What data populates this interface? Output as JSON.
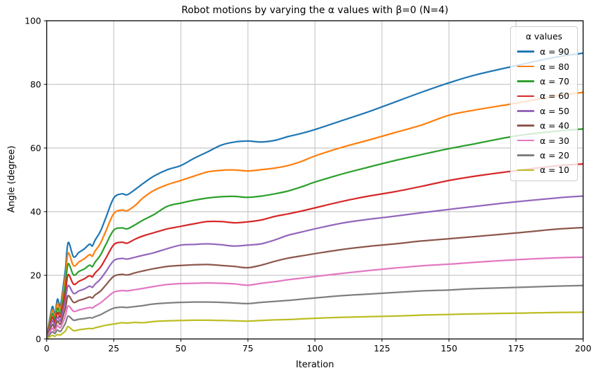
{
  "chart_data": {
    "type": "line",
    "title": "Robot motions by varying the α values with β=0 (N=4)",
    "xlabel": "Iteration",
    "ylabel": "Angle (degree)",
    "xlim": [
      0,
      200
    ],
    "ylim": [
      0,
      100
    ],
    "xticks": [
      0,
      25,
      50,
      75,
      100,
      125,
      150,
      175,
      200
    ],
    "yticks": [
      0,
      20,
      40,
      60,
      80,
      100
    ],
    "grid": true,
    "grid_color": "#b8b8b8",
    "spine_color": "#000000",
    "legend_title": "α values",
    "legend_position": "upper right",
    "x": [
      0,
      2,
      3,
      4,
      5,
      6,
      7,
      8,
      10,
      12,
      14,
      16,
      17,
      18,
      20,
      22,
      25,
      28,
      30,
      33,
      36,
      40,
      45,
      50,
      55,
      60,
      65,
      70,
      75,
      80,
      85,
      90,
      95,
      100,
      110,
      120,
      130,
      140,
      150,
      160,
      175,
      190,
      200
    ],
    "series": [
      {
        "name": "alpha-90",
        "label": "α = 90",
        "color": "#1f77b4",
        "values": [
          0.5,
          10,
          7.6,
          12.5,
          10.3,
          15.5,
          22,
          30.3,
          25.8,
          27.2,
          28.3,
          29.8,
          29.2,
          31,
          33.8,
          38,
          44.3,
          45.6,
          45.3,
          47,
          48.9,
          51.2,
          53.2,
          54.5,
          56.8,
          58.8,
          60.9,
          61.9,
          62.2,
          61.9,
          62.4,
          63.6,
          64.6,
          65.8,
          68.6,
          71.4,
          74.5,
          77.6,
          80.5,
          83,
          85.9,
          88.6,
          89.8
        ]
      },
      {
        "name": "alpha-80",
        "label": "α = 80",
        "color": "#ff7f0e",
        "values": [
          0.4,
          8.9,
          6.8,
          11.1,
          9.2,
          13.8,
          19.6,
          27,
          23,
          24.2,
          25.2,
          26.5,
          26,
          27.6,
          30,
          33.8,
          39.4,
          40.5,
          40.3,
          42,
          44.4,
          46.7,
          48.5,
          49.8,
          51.2,
          52.5,
          53,
          53.1,
          52.8,
          53.2,
          53.7,
          54.5,
          55.8,
          57.5,
          60.2,
          62.5,
          64.9,
          67.3,
          70.3,
          72,
          74.1,
          76.4,
          77.5
        ]
      },
      {
        "name": "alpha-70",
        "label": "α = 70",
        "color": "#2ca02c",
        "values": [
          0.4,
          7.8,
          5.9,
          9.7,
          8,
          12.1,
          17.1,
          23.6,
          20.1,
          21.2,
          22,
          23.2,
          22.7,
          24.1,
          26.3,
          29.6,
          34.2,
          34.9,
          34.6,
          35.9,
          37.4,
          39.1,
          41.7,
          42.7,
          43.6,
          44.3,
          44.7,
          44.8,
          44.5,
          44.9,
          45.6,
          46.5,
          47.8,
          49.3,
          51.8,
          54,
          56.1,
          58,
          59.8,
          61.4,
          63.8,
          65.3,
          66
        ]
      },
      {
        "name": "alpha-60",
        "label": "α = 60",
        "color": "#d62728",
        "values": [
          0.3,
          6.7,
          5.1,
          8.3,
          6.9,
          10.3,
          14.7,
          20.2,
          17.2,
          18.1,
          18.9,
          19.9,
          19.5,
          20.7,
          22.5,
          25.3,
          29.6,
          30.4,
          30.1,
          31.4,
          32.4,
          33.4,
          34.6,
          35.4,
          36.2,
          36.9,
          36.9,
          36.5,
          36.8,
          37.4,
          38.5,
          39.3,
          40.2,
          41.2,
          43.2,
          44.9,
          46.3,
          48,
          49.8,
          51.2,
          52.9,
          54.4,
          55
        ]
      },
      {
        "name": "alpha-50",
        "label": "α = 50",
        "color": "#9467bd",
        "values": [
          0.3,
          5.6,
          4.2,
          6.9,
          5.7,
          8.6,
          12.2,
          16.8,
          14.3,
          15.1,
          15.7,
          16.6,
          16.2,
          17.2,
          18.8,
          21.1,
          24.6,
          25.3,
          25.1,
          25.7,
          26.3,
          27.1,
          28.4,
          29.5,
          29.7,
          29.9,
          29.6,
          29.2,
          29.5,
          29.9,
          31.1,
          32.6,
          33.6,
          34.6,
          36.4,
          37.6,
          38.6,
          39.7,
          40.7,
          41.7,
          43.1,
          44.3,
          44.9
        ]
      },
      {
        "name": "alpha-40",
        "label": "α = 40",
        "color": "#8c564b",
        "values": [
          0.2,
          4.4,
          3.4,
          5.6,
          4.6,
          6.9,
          9.8,
          13.6,
          11.5,
          12.1,
          12.6,
          13.2,
          12.9,
          13.8,
          15,
          16.9,
          19.7,
          20.3,
          20.1,
          20.8,
          21.4,
          22.1,
          22.8,
          23.1,
          23.3,
          23.4,
          23.1,
          22.8,
          22.4,
          23.2,
          24.4,
          25.4,
          26.1,
          26.8,
          28.1,
          29.1,
          29.9,
          30.8,
          31.5,
          32.2,
          33.3,
          34.5,
          35
        ]
      },
      {
        "name": "alpha-30",
        "label": "α = 30",
        "color": "#e377c2",
        "values": [
          0.2,
          3.3,
          2.5,
          4.2,
          3.5,
          5.2,
          7.4,
          10.4,
          8.7,
          9.1,
          9.5,
          9.9,
          9.7,
          10.3,
          11.3,
          12.7,
          14.7,
          15.2,
          15.1,
          15.5,
          15.9,
          16.5,
          17.1,
          17.4,
          17.5,
          17.6,
          17.5,
          17.3,
          16.9,
          17.5,
          18,
          18.6,
          19.1,
          19.6,
          20.6,
          21.5,
          22.3,
          23,
          23.5,
          24.1,
          24.9,
          25.5,
          25.7
        ]
      },
      {
        "name": "alpha-20",
        "label": "α = 20",
        "color": "#7f7f7f",
        "values": [
          0.1,
          2.2,
          1.7,
          2.8,
          2.3,
          3.5,
          5,
          7.2,
          5.9,
          6.2,
          6.4,
          6.7,
          6.6,
          7,
          7.6,
          8.5,
          9.7,
          10,
          9.9,
          10.2,
          10.5,
          11,
          11.3,
          11.5,
          11.6,
          11.6,
          11.5,
          11.3,
          11.1,
          11.5,
          11.8,
          12.1,
          12.5,
          12.9,
          13.6,
          14.1,
          14.6,
          15.1,
          15.4,
          15.8,
          16.2,
          16.6,
          16.8
        ]
      },
      {
        "name": "alpha-10",
        "label": "α = 10",
        "color": "#bcbd22",
        "values": [
          0.1,
          1.1,
          0.8,
          1.4,
          1.2,
          1.8,
          2.5,
          3.9,
          2.6,
          2.9,
          3.1,
          3.3,
          3.2,
          3.5,
          3.9,
          4.3,
          4.7,
          5.1,
          5,
          5.2,
          5.1,
          5.5,
          5.7,
          5.8,
          5.9,
          5.9,
          5.8,
          5.7,
          5.6,
          5.8,
          6,
          6.1,
          6.3,
          6.5,
          6.8,
          7,
          7.2,
          7.5,
          7.7,
          7.9,
          8.1,
          8.3,
          8.4
        ]
      }
    ]
  }
}
